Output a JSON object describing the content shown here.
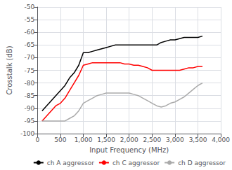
{
  "chart_data": {
    "type": "line",
    "xlabel": "Input Frequency (MHz)",
    "ylabel": "Crosstalk (dB)",
    "x": [
      100,
      200,
      300,
      400,
      500,
      600,
      700,
      800,
      900,
      1000,
      1100,
      1200,
      1300,
      1400,
      1500,
      1600,
      1700,
      1800,
      1900,
      2000,
      2100,
      2200,
      2300,
      2400,
      2500,
      2600,
      2700,
      2800,
      2900,
      3000,
      3100,
      3200,
      3300,
      3400,
      3500,
      3600
    ],
    "series": [
      {
        "name": "ch A aggressor",
        "color": "#000000",
        "values": [
          -91,
          -89,
          -87,
          -85,
          -83,
          -81,
          -78,
          -76,
          -73,
          -68,
          -68,
          -67.5,
          -67,
          -66.5,
          -66,
          -65.5,
          -65,
          -65,
          -65,
          -65,
          -65,
          -65,
          -65,
          -65,
          -65,
          -65,
          -64,
          -63.5,
          -63,
          -63,
          -62.5,
          -62,
          -62,
          -62,
          -62,
          -61.5
        ]
      },
      {
        "name": "ch C aggressor",
        "color": "#ff0000",
        "values": [
          -95,
          -93,
          -91,
          -89,
          -88,
          -86,
          -83,
          -80,
          -77,
          -73,
          -72.5,
          -72,
          -72,
          -72,
          -72,
          -72,
          -72,
          -72,
          -72.5,
          -72.5,
          -73,
          -73,
          -73.5,
          -74,
          -75,
          -75,
          -75,
          -75,
          -75,
          -75,
          -75,
          -74.5,
          -74,
          -74,
          -73.5,
          -73.5
        ]
      },
      {
        "name": "ch D aggressor",
        "color": "#aaaaaa",
        "values": [
          -95,
          -95,
          -95,
          -95,
          -95,
          -95,
          -94,
          -93,
          -91,
          -88,
          -87,
          -86,
          -85,
          -84.5,
          -84,
          -84,
          -84,
          -84,
          -84,
          -84,
          -84.5,
          -85,
          -86,
          -87,
          -88,
          -89,
          -89.5,
          -89,
          -88,
          -87.5,
          -86.5,
          -85.5,
          -84,
          -82.5,
          -81,
          -80
        ]
      }
    ],
    "xlim": [
      0,
      4000
    ],
    "ylim": [
      -100,
      -50
    ],
    "xticks": [
      0,
      500,
      1000,
      1500,
      2000,
      2500,
      3000,
      3500,
      4000
    ],
    "yticks": [
      -100,
      -95,
      -90,
      -85,
      -80,
      -75,
      -70,
      -65,
      -60,
      -55,
      -50
    ],
    "grid": true,
    "legend": "lower right"
  }
}
